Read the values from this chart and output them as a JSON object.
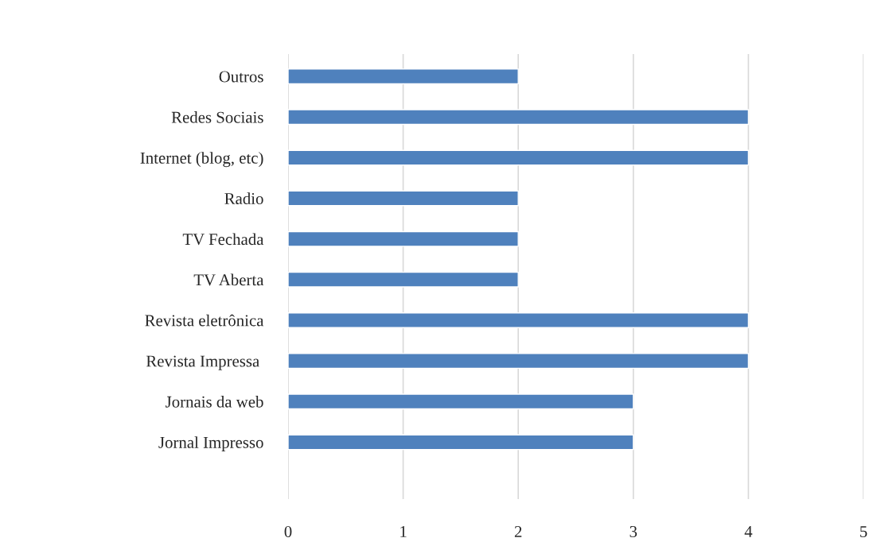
{
  "chart_data": {
    "type": "bar",
    "orientation": "horizontal",
    "categories": [
      "Outros",
      "Redes Sociais",
      "Internet (blog, etc)",
      "Radio",
      "TV Fechada",
      "TV Aberta",
      "Revista eletrônica",
      "Revista Impressa ",
      "Jornais da web",
      "Jornal Impresso"
    ],
    "values": [
      2,
      4,
      4,
      2,
      2,
      2,
      4,
      4,
      3,
      3
    ],
    "color": "#4f81bd",
    "xlim": [
      0,
      5
    ],
    "xticks": [
      0,
      1,
      2,
      3,
      4,
      5
    ],
    "grid": "x",
    "legend": false
  }
}
